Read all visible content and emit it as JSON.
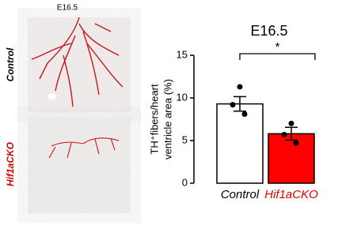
{
  "image_panel": {
    "header": "E16.5",
    "row_labels": [
      "Control",
      "Hif1aCKO"
    ],
    "row_label_colors": [
      "#000000",
      "#d40000"
    ]
  },
  "chart_data": {
    "type": "bar",
    "title": "E16.5",
    "ylabel": [
      "TH⁺fibers/heart",
      "ventricle area (%)"
    ],
    "categories": [
      "Control",
      "Hif1aCKO"
    ],
    "category_colors": [
      "#000000",
      "#e00000"
    ],
    "values": [
      9.3,
      5.8
    ],
    "errors": [
      0.85,
      0.75
    ],
    "points": [
      [
        11.3,
        9.2,
        8.1
      ],
      [
        7.0,
        5.7,
        4.7
      ]
    ],
    "colors": [
      "#ffffff",
      "#ff0000"
    ],
    "ylim": [
      0,
      15
    ],
    "yticks": [
      0,
      5,
      10,
      15
    ],
    "annotation": "*"
  }
}
